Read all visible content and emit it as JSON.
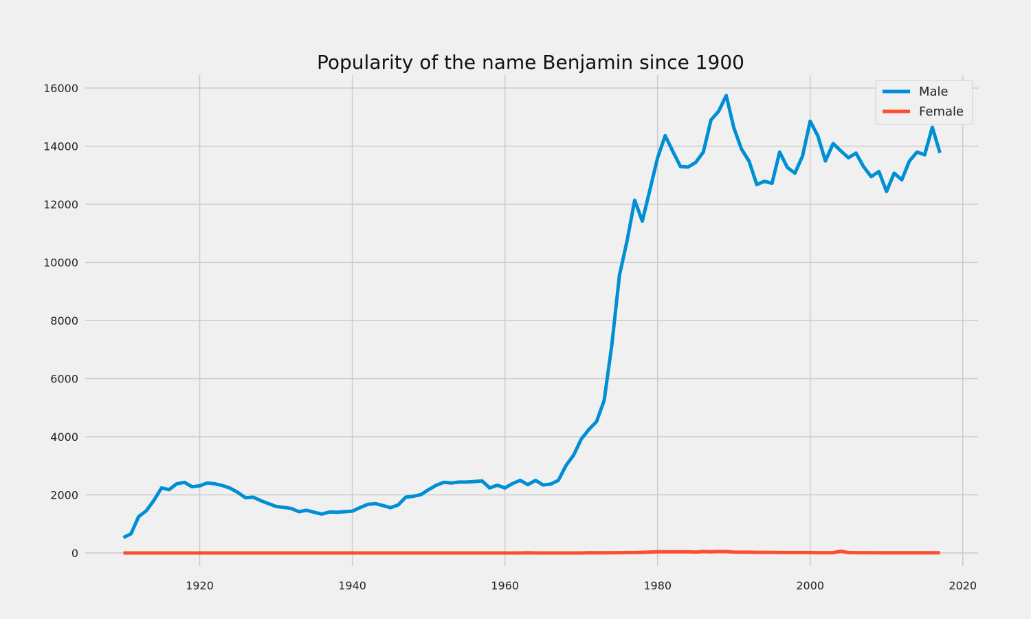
{
  "chart_data": {
    "type": "line",
    "title": "Popularity of the name Benjamin since 1900",
    "xlabel": "",
    "ylabel": "",
    "xlim": [
      1905,
      2022
    ],
    "ylim": [
      -450,
      16450
    ],
    "xticks": [
      1920,
      1940,
      1960,
      1980,
      2000,
      2020
    ],
    "yticks": [
      0,
      2000,
      4000,
      6000,
      8000,
      10000,
      12000,
      14000,
      16000
    ],
    "grid": true,
    "legend_position": "top-right",
    "x": [
      1910,
      1911,
      1912,
      1913,
      1914,
      1915,
      1916,
      1917,
      1918,
      1919,
      1920,
      1921,
      1922,
      1923,
      1924,
      1925,
      1926,
      1927,
      1928,
      1929,
      1930,
      1931,
      1932,
      1933,
      1934,
      1935,
      1936,
      1937,
      1938,
      1939,
      1940,
      1941,
      1942,
      1943,
      1944,
      1945,
      1946,
      1947,
      1948,
      1949,
      1950,
      1951,
      1952,
      1953,
      1954,
      1955,
      1956,
      1957,
      1958,
      1959,
      1960,
      1961,
      1962,
      1963,
      1964,
      1965,
      1966,
      1967,
      1968,
      1969,
      1970,
      1971,
      1972,
      1973,
      1974,
      1975,
      1976,
      1977,
      1978,
      1979,
      1980,
      1981,
      1982,
      1983,
      1984,
      1985,
      1986,
      1987,
      1988,
      1989,
      1990,
      1991,
      1992,
      1993,
      1994,
      1995,
      1996,
      1997,
      1998,
      1999,
      2000,
      2001,
      2002,
      2003,
      2004,
      2005,
      2006,
      2007,
      2008,
      2009,
      2010,
      2011,
      2012,
      2013,
      2014,
      2015,
      2016,
      2017
    ],
    "series": [
      {
        "name": "Male",
        "color": "#008fd5",
        "values": [
          530,
          660,
          1250,
          1450,
          1810,
          2240,
          2180,
          2380,
          2430,
          2280,
          2310,
          2410,
          2380,
          2320,
          2230,
          2080,
          1900,
          1920,
          1800,
          1700,
          1600,
          1570,
          1530,
          1420,
          1470,
          1400,
          1340,
          1410,
          1400,
          1420,
          1440,
          1560,
          1670,
          1700,
          1630,
          1560,
          1650,
          1920,
          1950,
          2010,
          2180,
          2330,
          2430,
          2410,
          2440,
          2440,
          2460,
          2480,
          2240,
          2330,
          2240,
          2390,
          2500,
          2350,
          2500,
          2340,
          2370,
          2500,
          3010,
          3370,
          3920,
          4250,
          4520,
          5250,
          7150,
          9550,
          10740,
          12140,
          11420,
          12500,
          13600,
          14360,
          13820,
          13300,
          13280,
          13440,
          13800,
          14900,
          15200,
          15740,
          14630,
          13900,
          13480,
          12680,
          12790,
          12720,
          13800,
          13270,
          13070,
          13660,
          14860,
          14360,
          13490,
          14090,
          13840,
          13600,
          13760,
          13290,
          12950,
          13130,
          12440,
          13070,
          12840,
          13490,
          13800,
          13700,
          14650,
          13770
        ]
      },
      {
        "name": "Female",
        "color": "#fc4f30",
        "values": [
          0,
          0,
          0,
          0,
          0,
          0,
          0,
          0,
          0,
          0,
          0,
          0,
          0,
          0,
          0,
          0,
          0,
          0,
          0,
          0,
          0,
          0,
          0,
          0,
          0,
          0,
          0,
          0,
          0,
          0,
          0,
          0,
          0,
          0,
          0,
          0,
          0,
          0,
          0,
          0,
          0,
          0,
          0,
          0,
          0,
          0,
          0,
          0,
          0,
          0,
          0,
          0,
          0,
          5,
          0,
          0,
          0,
          0,
          0,
          0,
          0,
          10,
          5,
          5,
          10,
          10,
          15,
          15,
          20,
          30,
          40,
          40,
          40,
          40,
          40,
          30,
          50,
          40,
          50,
          50,
          30,
          25,
          25,
          20,
          20,
          20,
          15,
          15,
          15,
          15,
          15,
          10,
          10,
          10,
          60,
          15,
          10,
          10,
          10,
          5,
          5,
          5,
          5,
          5,
          5,
          5,
          5,
          5
        ]
      }
    ]
  }
}
